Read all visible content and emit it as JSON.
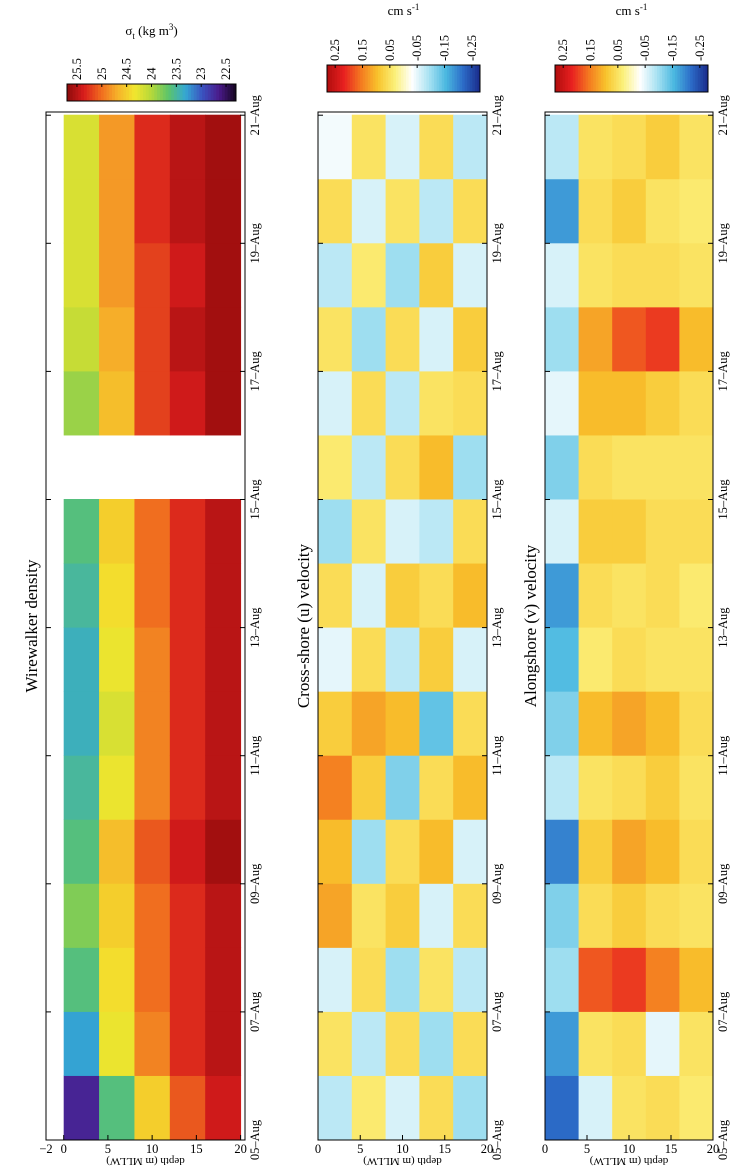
{
  "chart_data": [
    {
      "type": "heatmap",
      "title": "Wirewalker density",
      "y_label": "depth (m MLLW)",
      "colorbar_label": {
        "symbol": "σ",
        "sub": "t",
        "unit": " (kg m",
        "sup": "3",
        "end": ")"
      },
      "x": [
        5.5,
        6.5,
        7.5,
        8.5,
        9.5,
        10.5,
        11.5,
        12.5,
        13.5,
        14.5,
        15.5,
        16.5,
        17.5,
        18.5,
        19.5,
        20.5
      ],
      "y": [
        2,
        6,
        10,
        14,
        18
      ],
      "values": [
        [
          22.7,
          23.3,
          23.6,
          23.8,
          23.6,
          23.5,
          23.4,
          23.4,
          23.5,
          23.6,
          null,
          23.9,
          24.1,
          24.2,
          24.2,
          24.2
        ],
        [
          23.6,
          24.3,
          24.4,
          24.5,
          24.6,
          24.3,
          24.2,
          24.3,
          24.4,
          24.5,
          null,
          24.6,
          24.7,
          24.8,
          24.8,
          24.8
        ],
        [
          24.5,
          24.9,
          25.0,
          25.0,
          25.1,
          24.9,
          24.9,
          24.9,
          25.0,
          25.0,
          null,
          25.2,
          25.2,
          25.2,
          25.3,
          25.3
        ],
        [
          25.1,
          25.3,
          25.3,
          25.3,
          25.4,
          25.3,
          25.3,
          25.3,
          25.3,
          25.3,
          null,
          25.4,
          25.5,
          25.4,
          25.5,
          25.5
        ],
        [
          25.4,
          25.5,
          25.5,
          25.5,
          25.6,
          25.5,
          25.5,
          25.5,
          25.5,
          25.5,
          null,
          25.6,
          25.6,
          25.6,
          25.6,
          25.6
        ]
      ],
      "xlim": [
        5,
        21.05
      ],
      "xticks": [
        {
          "value": 5,
          "label": "05–Aug"
        },
        {
          "value": 7,
          "label": "07–Aug"
        },
        {
          "value": 9,
          "label": "09–Aug"
        },
        {
          "value": 11,
          "label": "11–Aug"
        },
        {
          "value": 13,
          "label": "13–Aug"
        },
        {
          "value": 15,
          "label": "15–Aug"
        },
        {
          "value": 17,
          "label": "17–Aug"
        },
        {
          "value": 19,
          "label": "19–Aug"
        },
        {
          "value": 21,
          "label": "21–Aug"
        }
      ],
      "ylim": [
        -2,
        20.5
      ],
      "yticks": [
        {
          "value": -2,
          "label": "−2"
        },
        0,
        5,
        10,
        15,
        20
      ],
      "clim": [
        25.7,
        22.3
      ],
      "cticks": [
        25.5,
        25,
        24.5,
        24,
        23.5,
        23,
        22.5
      ],
      "colormap": [
        "#8c0a0a",
        "#d81c1c",
        "#f06a1e",
        "#f6b22a",
        "#f2e62e",
        "#b4d83a",
        "#5cc46a",
        "#34a8d4",
        "#3a52c0",
        "#4a1a8a",
        "#14051e"
      ]
    },
    {
      "type": "heatmap",
      "title": "Cross-shore (u) velocity",
      "y_label": "depth (m MLLW)",
      "colorbar_label": {
        "text": "cm s",
        "sup": "-1"
      },
      "x": [
        5.5,
        6.5,
        7.5,
        8.5,
        9.5,
        10.5,
        11.5,
        12.5,
        13.5,
        14.5,
        15.5,
        16.5,
        17.5,
        18.5,
        19.5,
        20.5
      ],
      "y": [
        2,
        6,
        10,
        14,
        18
      ],
      "values": [
        [
          -0.08,
          0.05,
          -0.06,
          0.12,
          0.1,
          0.15,
          0.08,
          -0.05,
          0.06,
          -0.1,
          0.04,
          -0.06,
          0.05,
          -0.08,
          0.06,
          -0.04
        ],
        [
          0.04,
          -0.08,
          0.06,
          0.05,
          -0.1,
          0.08,
          0.12,
          0.06,
          -0.06,
          0.05,
          -0.08,
          0.06,
          -0.1,
          0.04,
          -0.06,
          0.05
        ],
        [
          -0.06,
          0.06,
          -0.1,
          0.08,
          0.06,
          -0.12,
          0.1,
          -0.08,
          0.08,
          -0.06,
          0.06,
          -0.08,
          0.06,
          -0.1,
          0.05,
          -0.06
        ],
        [
          0.06,
          -0.1,
          0.05,
          -0.06,
          0.1,
          0.06,
          -0.14,
          0.08,
          0.06,
          -0.08,
          0.1,
          0.05,
          -0.06,
          0.08,
          -0.08,
          0.06
        ],
        [
          -0.1,
          0.06,
          -0.08,
          0.06,
          -0.06,
          0.1,
          0.06,
          -0.06,
          0.1,
          0.06,
          -0.1,
          0.06,
          0.08,
          -0.06,
          0.06,
          -0.08
        ]
      ],
      "xlim": [
        5,
        21.05
      ],
      "xticks": [
        {
          "value": 5,
          "label": "05–Aug"
        },
        {
          "value": 7,
          "label": "07–Aug"
        },
        {
          "value": 9,
          "label": "09–Aug"
        },
        {
          "value": 11,
          "label": "11–Aug"
        },
        {
          "value": 13,
          "label": "13–Aug"
        },
        {
          "value": 15,
          "label": "15–Aug"
        },
        {
          "value": 17,
          "label": "17–Aug"
        },
        {
          "value": 19,
          "label": "19–Aug"
        },
        {
          "value": 21,
          "label": "21–Aug"
        }
      ],
      "ylim": [
        0,
        20
      ],
      "yticks": [
        0,
        5,
        10,
        15,
        20
      ],
      "clim": [
        0.28,
        -0.28
      ],
      "cticks": [
        0.25,
        0.15,
        0.05,
        -0.05,
        -0.15,
        -0.25
      ],
      "colormap": [
        "#b00c0c",
        "#e82020",
        "#f47a20",
        "#f8c42c",
        "#fbf07a",
        "#ffffff",
        "#a8e2f2",
        "#4ab8e0",
        "#2c6cc8",
        "#1a2a8a"
      ]
    },
    {
      "type": "heatmap",
      "title": "Alongshore (v) velocity",
      "y_label": "depth (m MLLW)",
      "colorbar_label": {
        "text": "cm s",
        "sup": "-1"
      },
      "x": [
        5.5,
        6.5,
        7.5,
        8.5,
        9.5,
        10.5,
        11.5,
        12.5,
        13.5,
        14.5,
        15.5,
        16.5,
        17.5,
        18.5,
        19.5,
        20.5
      ],
      "y": [
        2,
        6,
        10,
        14,
        18
      ],
      "values": [
        [
          -0.22,
          -0.18,
          -0.1,
          -0.12,
          -0.2,
          -0.08,
          -0.12,
          -0.15,
          -0.18,
          -0.06,
          -0.12,
          -0.05,
          -0.1,
          -0.06,
          -0.18,
          -0.08
        ],
        [
          -0.06,
          0.05,
          0.18,
          0.06,
          0.08,
          0.05,
          0.1,
          0.04,
          0.06,
          0.08,
          0.06,
          0.1,
          0.12,
          0.05,
          0.06,
          0.05
        ],
        [
          0.05,
          0.06,
          0.2,
          0.08,
          0.12,
          0.06,
          0.12,
          0.06,
          0.05,
          0.08,
          0.05,
          0.1,
          0.18,
          0.06,
          0.08,
          0.06
        ],
        [
          0.06,
          -0.05,
          0.15,
          0.06,
          0.1,
          0.08,
          0.1,
          0.05,
          0.06,
          0.06,
          0.05,
          0.08,
          0.2,
          0.06,
          0.05,
          0.08
        ],
        [
          0.04,
          0.05,
          0.1,
          0.05,
          0.06,
          0.05,
          0.06,
          0.05,
          0.04,
          0.06,
          0.05,
          0.06,
          0.1,
          0.05,
          0.04,
          0.05
        ]
      ],
      "xlim": [
        5,
        21.05
      ],
      "xticks": [
        {
          "value": 5,
          "label": "05–Aug"
        },
        {
          "value": 7,
          "label": "07–Aug"
        },
        {
          "value": 9,
          "label": "09–Aug"
        },
        {
          "value": 11,
          "label": "11–Aug"
        },
        {
          "value": 13,
          "label": "13–Aug"
        },
        {
          "value": 15,
          "label": "15–Aug"
        },
        {
          "value": 17,
          "label": "17–Aug"
        },
        {
          "value": 19,
          "label": "19–Aug"
        },
        {
          "value": 21,
          "label": "21–Aug"
        }
      ],
      "ylim": [
        0,
        20
      ],
      "yticks": [
        0,
        5,
        10,
        15,
        20
      ],
      "clim": [
        0.28,
        -0.28
      ],
      "cticks": [
        0.25,
        0.15,
        0.05,
        -0.05,
        -0.15,
        -0.25
      ],
      "colormap": [
        "#b00c0c",
        "#e82020",
        "#f47a20",
        "#f8c42c",
        "#fbf07a",
        "#ffffff",
        "#a8e2f2",
        "#4ab8e0",
        "#2c6cc8",
        "#1a2a8a"
      ]
    }
  ]
}
